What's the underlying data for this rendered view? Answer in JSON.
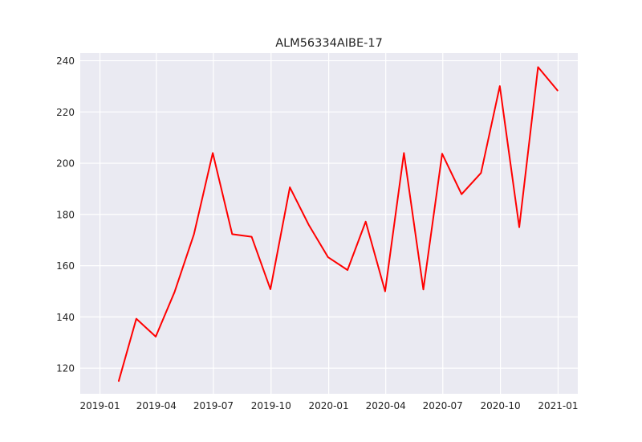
{
  "chart_data": {
    "type": "line",
    "title": "ALM56334AIBE-17",
    "xlabel": "",
    "ylabel": "",
    "x_axis_type": "date",
    "xlim": [
      "2019-01-01",
      "2021-01-01"
    ],
    "ylim": [
      110,
      243
    ],
    "x_ticks": [
      {
        "date": "2019-01-01",
        "label": "2019-01"
      },
      {
        "date": "2019-04-01",
        "label": "2019-04"
      },
      {
        "date": "2019-07-01",
        "label": "2019-07"
      },
      {
        "date": "2019-10-01",
        "label": "2019-10"
      },
      {
        "date": "2020-01-01",
        "label": "2020-01"
      },
      {
        "date": "2020-04-01",
        "label": "2020-04"
      },
      {
        "date": "2020-07-01",
        "label": "2020-07"
      },
      {
        "date": "2020-10-01",
        "label": "2020-10"
      },
      {
        "date": "2021-01-01",
        "label": "2021-01"
      }
    ],
    "y_ticks": [
      {
        "value": 120,
        "label": "120"
      },
      {
        "value": 140,
        "label": "140"
      },
      {
        "value": 160,
        "label": "160"
      },
      {
        "value": 180,
        "label": "180"
      },
      {
        "value": 200,
        "label": "200"
      },
      {
        "value": 220,
        "label": "220"
      },
      {
        "value": 240,
        "label": "240"
      }
    ],
    "grid": true,
    "background_color": "#eaeaf2",
    "grid_color": "#ffffff",
    "series": [
      {
        "color": "#ff0000",
        "points": [
          {
            "x": "2019-01-31",
            "y": 115.0
          },
          {
            "x": "2019-02-28",
            "y": 139.3
          },
          {
            "x": "2019-03-31",
            "y": 132.3
          },
          {
            "x": "2019-04-30",
            "y": 149.7
          },
          {
            "x": "2019-05-31",
            "y": 172.3
          },
          {
            "x": "2019-06-30",
            "y": 204.0
          },
          {
            "x": "2019-07-31",
            "y": 172.3
          },
          {
            "x": "2019-08-31",
            "y": 171.3
          },
          {
            "x": "2019-09-30",
            "y": 150.8
          },
          {
            "x": "2019-10-31",
            "y": 190.6
          },
          {
            "x": "2019-11-30",
            "y": 176.0
          },
          {
            "x": "2019-12-31",
            "y": 163.3
          },
          {
            "x": "2020-01-31",
            "y": 158.3
          },
          {
            "x": "2020-02-29",
            "y": 177.2
          },
          {
            "x": "2020-03-31",
            "y": 150.0
          },
          {
            "x": "2020-04-30",
            "y": 204.0
          },
          {
            "x": "2020-05-31",
            "y": 150.7
          },
          {
            "x": "2020-06-30",
            "y": 203.7
          },
          {
            "x": "2020-07-31",
            "y": 187.9
          },
          {
            "x": "2020-08-31",
            "y": 196.2
          },
          {
            "x": "2020-09-30",
            "y": 230.1
          },
          {
            "x": "2020-10-31",
            "y": 175.0
          },
          {
            "x": "2020-11-30",
            "y": 237.5
          },
          {
            "x": "2020-12-31",
            "y": 228.4
          }
        ]
      }
    ]
  }
}
